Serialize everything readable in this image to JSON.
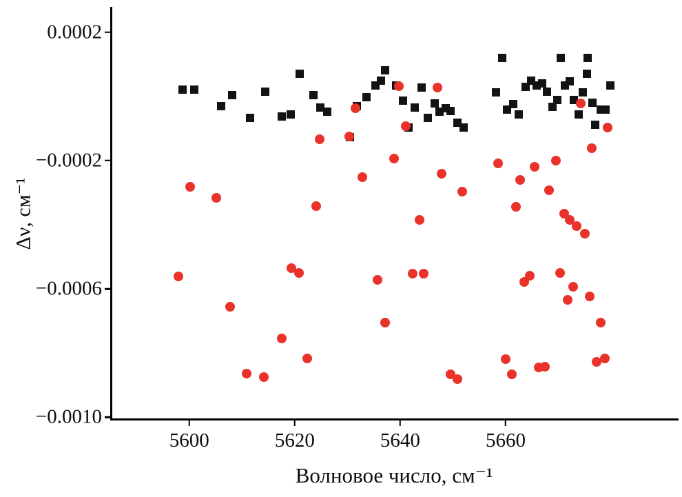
{
  "figure": {
    "background": "#ffffff",
    "axis_color": "#000000"
  },
  "chart_data": {
    "type": "scatter",
    "title": "",
    "xlabel": "Волновое число, см⁻¹",
    "ylabel": "Δν, см⁻¹",
    "xlim": [
      5585.4,
      5692.8
    ],
    "ylim": [
      -0.001004,
      0.000279
    ],
    "grid": false,
    "legend": "none",
    "x_ticks": [
      {
        "value": 5600,
        "label": "5600"
      },
      {
        "value": 5620,
        "label": "5620"
      },
      {
        "value": 5640,
        "label": "5640"
      },
      {
        "value": 5660,
        "label": "5660"
      }
    ],
    "y_ticks": [
      {
        "value": 0.0002,
        "label": "0.0002"
      },
      {
        "value": -0.0002,
        "label": "−0.0002"
      },
      {
        "value": -0.0006,
        "label": "−0.0006"
      },
      {
        "value": -0.001,
        "label": "−0.0010"
      }
    ],
    "series": [
      {
        "name": "black-squares",
        "marker": "square",
        "color": "#131313",
        "points": [
          [
            5598.7,
            2.2e-05
          ],
          [
            5600.9,
            2.2e-05
          ],
          [
            5606.0,
            -3.1e-05
          ],
          [
            5608.1,
            3e-06
          ],
          [
            5611.5,
            -6.7e-05
          ],
          [
            5614.4,
            1.4e-05
          ],
          [
            5617.6,
            -6.3e-05
          ],
          [
            5619.3,
            -5.7e-05
          ],
          [
            5621.0,
            7e-05
          ],
          [
            5623.6,
            3e-06
          ],
          [
            5624.9,
            -3.5e-05
          ],
          [
            5626.2,
            -4.8e-05
          ],
          [
            5630.5,
            -0.000127
          ],
          [
            5631.8,
            -3.1e-05
          ],
          [
            5633.6,
            -3e-06
          ],
          [
            5635.3,
            3.3e-05
          ],
          [
            5636.4,
            5e-05
          ],
          [
            5637.2,
            8.2e-05
          ],
          [
            5639.2,
            3.3e-05
          ],
          [
            5640.5,
            -1.4e-05
          ],
          [
            5641.6,
            -9.7e-05
          ],
          [
            5642.7,
            -3.5e-05
          ],
          [
            5644.1,
            2.7e-05
          ],
          [
            5645.3,
            -6.7e-05
          ],
          [
            5646.6,
            -2.2e-05
          ],
          [
            5647.5,
            -4.8e-05
          ],
          [
            5648.7,
            -3.7e-05
          ],
          [
            5649.6,
            -4.6e-05
          ],
          [
            5650.8,
            -8.2e-05
          ],
          [
            5652.1,
            -9.7e-05
          ],
          [
            5658.2,
            1.2e-05
          ],
          [
            5659.4,
            0.000121
          ],
          [
            5660.3,
            -4.2e-05
          ],
          [
            5661.4,
            -2.5e-05
          ],
          [
            5662.5,
            -5.7e-05
          ],
          [
            5663.8,
            2.9e-05
          ],
          [
            5664.8,
            5e-05
          ],
          [
            5665.9,
            3.3e-05
          ],
          [
            5666.9,
            4e-05
          ],
          [
            5667.9,
            1.4e-05
          ],
          [
            5668.9,
            -3.3e-05
          ],
          [
            5669.8,
            -1.2e-05
          ],
          [
            5670.4,
            0.000121
          ],
          [
            5671.3,
            3.3e-05
          ],
          [
            5672.2,
            4.6e-05
          ],
          [
            5673.0,
            -1.2e-05
          ],
          [
            5673.8,
            -5.7e-05
          ],
          [
            5674.7,
            1.2e-05
          ],
          [
            5675.4,
            7e-05
          ],
          [
            5675.6,
            0.000121
          ],
          [
            5676.5,
            -2e-05
          ],
          [
            5677.0,
            -8.9e-05
          ],
          [
            5678.1,
            -4.2e-05
          ],
          [
            5679.0,
            -4.2e-05
          ],
          [
            5679.9,
            3.5e-05
          ]
        ]
      },
      {
        "name": "red-circles",
        "marker": "circle",
        "color": "#e93229",
        "points": [
          [
            5597.9,
            -0.000562
          ],
          [
            5600.1,
            -0.000281
          ],
          [
            5605.1,
            -0.000316
          ],
          [
            5607.7,
            -0.000656
          ],
          [
            5610.9,
            -0.000865
          ],
          [
            5614.2,
            -0.000874
          ],
          [
            5617.6,
            -0.000754
          ],
          [
            5619.4,
            -0.000536
          ],
          [
            5620.8,
            -0.000551
          ],
          [
            5622.4,
            -0.000816
          ],
          [
            5624.1,
            -0.000343
          ],
          [
            5624.7,
            -0.000134
          ],
          [
            5630.3,
            -0.000125
          ],
          [
            5631.5,
            -3.7e-05
          ],
          [
            5632.8,
            -0.000251
          ],
          [
            5635.7,
            -0.000572
          ],
          [
            5637.2,
            -0.000705
          ],
          [
            5638.8,
            -0.000194
          ],
          [
            5639.8,
            3.1e-05
          ],
          [
            5641.1,
            -9.3e-05
          ],
          [
            5642.4,
            -0.000553
          ],
          [
            5643.7,
            -0.000384
          ],
          [
            5644.4,
            -0.000553
          ],
          [
            5647.1,
            2.7e-05
          ],
          [
            5647.9,
            -0.000241
          ],
          [
            5649.5,
            -0.000867
          ],
          [
            5650.8,
            -0.000882
          ],
          [
            5651.8,
            -0.000298
          ],
          [
            5658.6,
            -0.000209
          ],
          [
            5660.0,
            -0.00082
          ],
          [
            5661.2,
            -0.000867
          ],
          [
            5662.0,
            -0.000345
          ],
          [
            5662.7,
            -0.00026
          ],
          [
            5663.5,
            -0.000579
          ],
          [
            5664.6,
            -0.000559
          ],
          [
            5665.5,
            -0.000219
          ],
          [
            5666.3,
            -0.000846
          ],
          [
            5667.4,
            -0.000842
          ],
          [
            5668.3,
            -0.000292
          ],
          [
            5669.5,
            -0.0002
          ],
          [
            5670.3,
            -0.000551
          ],
          [
            5671.1,
            -0.000365
          ],
          [
            5671.7,
            -0.000634
          ],
          [
            5672.2,
            -0.000384
          ],
          [
            5672.8,
            -0.000594
          ],
          [
            5673.5,
            -0.000405
          ],
          [
            5674.2,
            -2.2e-05
          ],
          [
            5675.0,
            -0.000427
          ],
          [
            5675.9,
            -0.000624
          ],
          [
            5676.4,
            -0.000161
          ],
          [
            5677.3,
            -0.000827
          ],
          [
            5678.0,
            -0.000705
          ],
          [
            5678.8,
            -0.000816
          ],
          [
            5679.4,
            -9.7e-05
          ]
        ]
      }
    ]
  }
}
